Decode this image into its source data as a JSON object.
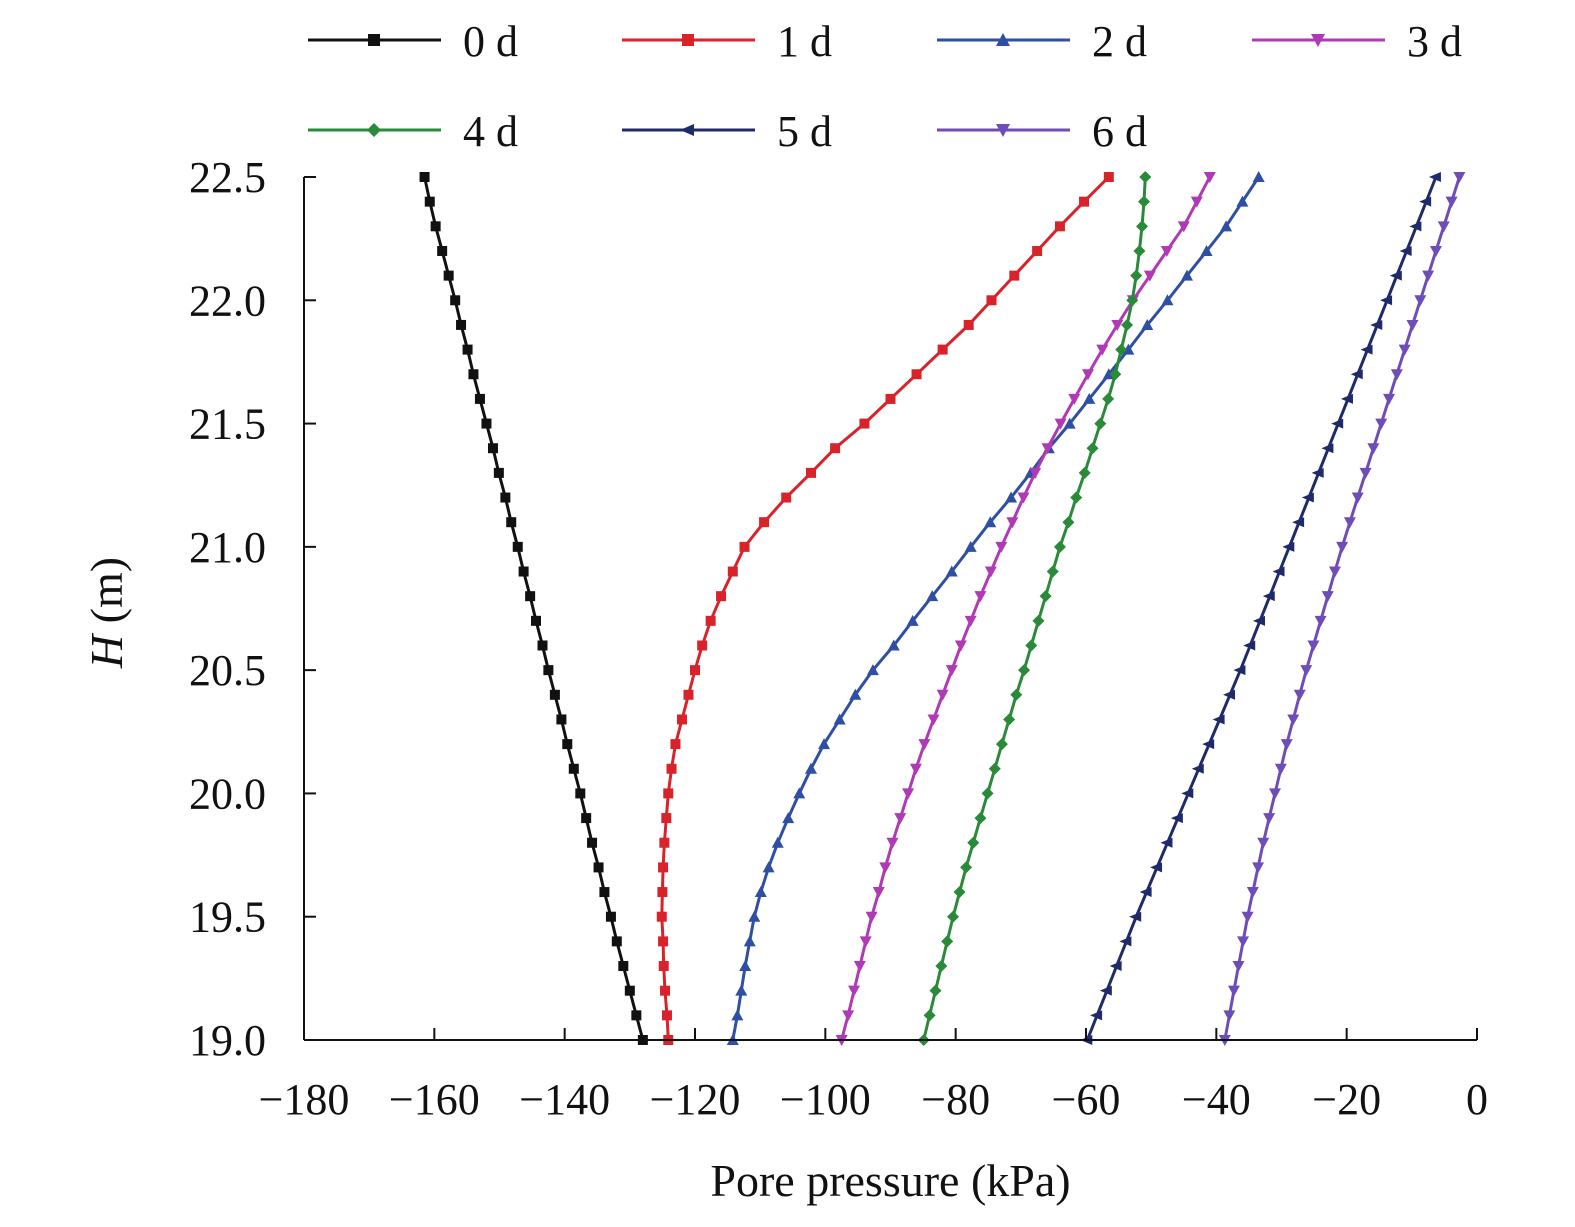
{
  "chart_data": {
    "type": "line",
    "title": "",
    "xlabel": "Pore pressure (kPa)",
    "ylabel": {
      "symbol": "H",
      "unit": " (m)"
    },
    "xlim": [
      -180,
      0
    ],
    "ylim": [
      19.0,
      22.5
    ],
    "x_ticks": [
      -180,
      -160,
      -140,
      -120,
      -100,
      -80,
      -60,
      -40,
      -20,
      0
    ],
    "x_tick_labels": [
      "−180",
      "−160",
      "−140",
      "−120",
      "−100",
      "−80",
      "−60",
      "−40",
      "−20",
      "0"
    ],
    "y_ticks": [
      19.0,
      19.5,
      20.0,
      20.5,
      21.0,
      21.5,
      22.0,
      22.5
    ],
    "y_tick_labels": [
      "19.0",
      "19.5",
      "20.0",
      "20.5",
      "21.0",
      "21.5",
      "22.0",
      "22.5"
    ],
    "grid": false,
    "legend_position": "top",
    "y_values": [
      19.0,
      19.1,
      19.2,
      19.3,
      19.4,
      19.5,
      19.6,
      19.7,
      19.8,
      19.9,
      20.0,
      20.1,
      20.2,
      20.3,
      20.4,
      20.5,
      20.6,
      20.7,
      20.8,
      20.9,
      21.0,
      21.1,
      21.2,
      21.3,
      21.4,
      21.5,
      21.6,
      21.7,
      21.8,
      21.9,
      22.0,
      22.1,
      22.2,
      22.3,
      22.4,
      22.5
    ],
    "series": [
      {
        "name": "0 d",
        "color": "#111111",
        "marker": "square",
        "x": [
          -128.0,
          -129.0,
          -130.0,
          -131.0,
          -132.0,
          -132.9,
          -133.9,
          -134.8,
          -135.8,
          -136.7,
          -137.6,
          -138.6,
          -139.6,
          -140.5,
          -141.5,
          -142.5,
          -143.4,
          -144.4,
          -145.3,
          -146.3,
          -147.2,
          -148.2,
          -149.1,
          -150.1,
          -151.0,
          -152.0,
          -153.0,
          -154.0,
          -154.9,
          -155.9,
          -156.8,
          -157.8,
          -158.8,
          -159.8,
          -160.7,
          -161.5
        ]
      },
      {
        "name": "1 d",
        "color": "#d8232a",
        "marker": "square",
        "x": [
          -124.1,
          -124.3,
          -124.6,
          -124.8,
          -124.9,
          -125.1,
          -125.0,
          -124.9,
          -124.7,
          -124.4,
          -124.1,
          -123.6,
          -123.0,
          -122.0,
          -121.0,
          -120.0,
          -118.9,
          -117.6,
          -116.0,
          -114.2,
          -112.4,
          -109.4,
          -106.0,
          -102.2,
          -98.5,
          -94.0,
          -90.0,
          -86.0,
          -82.0,
          -78.0,
          -74.5,
          -71.0,
          -67.5,
          -64.0,
          -60.3,
          -56.5
        ]
      },
      {
        "name": "2 d",
        "color": "#2e4fa3",
        "marker": "triangle-up",
        "x": [
          -114.2,
          -113.5,
          -112.9,
          -112.3,
          -111.6,
          -110.9,
          -109.9,
          -108.7,
          -107.3,
          -105.7,
          -104.0,
          -102.2,
          -100.2,
          -97.8,
          -95.4,
          -92.7,
          -89.5,
          -86.6,
          -83.6,
          -80.6,
          -77.7,
          -74.7,
          -71.5,
          -68.5,
          -65.7,
          -62.5,
          -59.5,
          -56.5,
          -53.5,
          -50.6,
          -47.5,
          -44.5,
          -41.5,
          -38.5,
          -36.0,
          -33.5
        ]
      },
      {
        "name": "3 d",
        "color": "#b03ab5",
        "marker": "triangle-down",
        "x": [
          -97.5,
          -96.5,
          -95.6,
          -94.7,
          -93.8,
          -92.9,
          -91.8,
          -90.8,
          -89.7,
          -88.5,
          -87.3,
          -86.1,
          -84.8,
          -83.4,
          -82.0,
          -80.6,
          -79.2,
          -77.7,
          -76.2,
          -74.6,
          -73.0,
          -71.3,
          -69.6,
          -67.8,
          -65.9,
          -63.9,
          -61.8,
          -59.7,
          -57.5,
          -55.2,
          -52.8,
          -50.2,
          -47.6,
          -45.0,
          -43.0,
          -41.0
        ]
      },
      {
        "name": "4 d",
        "color": "#2a8a3a",
        "marker": "diamond",
        "x": [
          -84.9,
          -84.0,
          -83.1,
          -82.2,
          -81.3,
          -80.4,
          -79.4,
          -78.4,
          -77.3,
          -76.2,
          -75.1,
          -74.0,
          -72.9,
          -71.8,
          -70.7,
          -69.5,
          -68.4,
          -67.3,
          -66.2,
          -65.1,
          -64.0,
          -62.7,
          -61.5,
          -60.2,
          -59.0,
          -57.8,
          -56.6,
          -55.5,
          -54.6,
          -53.7,
          -52.9,
          -52.3,
          -51.8,
          -51.4,
          -51.1,
          -50.9
        ]
      },
      {
        "name": "5 d",
        "color": "#1f2a6b",
        "marker": "arrow-left",
        "x": [
          -59.8,
          -58.3,
          -56.8,
          -55.3,
          -53.8,
          -52.3,
          -50.7,
          -49.1,
          -47.5,
          -45.9,
          -44.3,
          -42.7,
          -41.1,
          -39.5,
          -37.9,
          -36.3,
          -34.8,
          -33.3,
          -31.8,
          -30.3,
          -28.8,
          -27.3,
          -25.8,
          -24.3,
          -22.8,
          -21.3,
          -19.8,
          -18.3,
          -16.8,
          -15.3,
          -13.8,
          -12.3,
          -10.8,
          -9.3,
          -7.8,
          -6.3
        ]
      },
      {
        "name": "6 d",
        "color": "#6e4db8",
        "marker": "triangle-down",
        "x": [
          -38.7,
          -38.0,
          -37.3,
          -36.6,
          -35.9,
          -35.2,
          -34.4,
          -33.6,
          -32.8,
          -31.9,
          -31.0,
          -30.1,
          -29.2,
          -28.2,
          -27.2,
          -26.2,
          -25.1,
          -24.0,
          -22.9,
          -21.8,
          -20.7,
          -19.5,
          -18.3,
          -17.1,
          -15.9,
          -14.7,
          -13.5,
          -12.3,
          -11.1,
          -9.9,
          -8.7,
          -7.5,
          -6.3,
          -5.1,
          -3.9,
          -2.7
        ]
      }
    ]
  }
}
